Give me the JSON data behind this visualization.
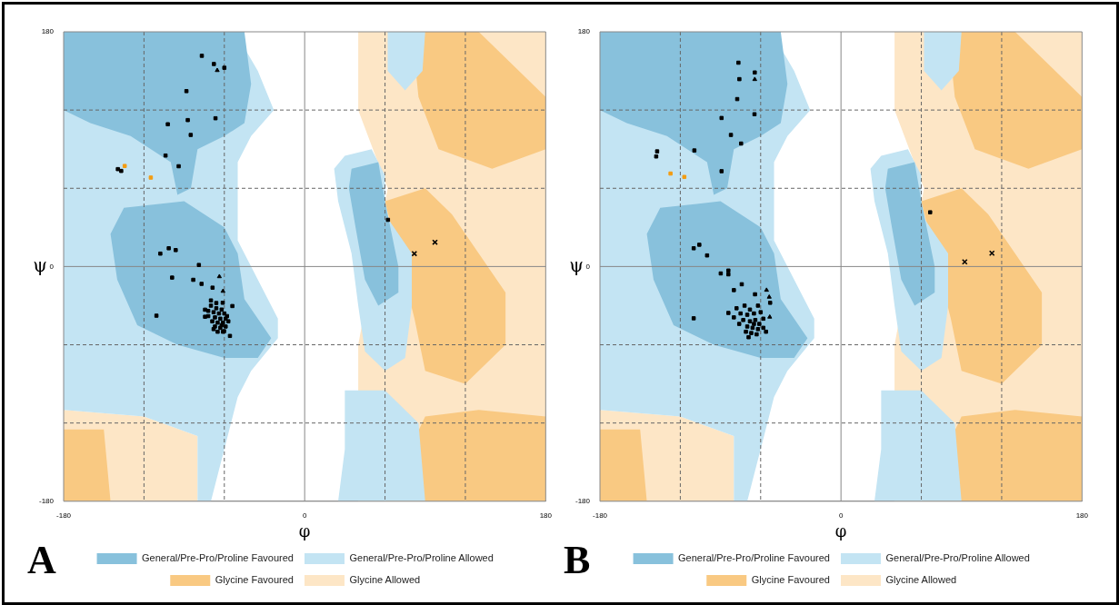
{
  "chart_data": [
    {
      "type": "scatter",
      "xlabel": "φ",
      "ylabel": "ψ",
      "annotations": [
        "A"
      ],
      "legend": "bottom",
      "grid": true,
      "xlim": [
        -180,
        180
      ],
      "xticks": [
        -180,
        {
          "value": -120,
          "label": null
        },
        {
          "value": -60,
          "label": null
        },
        0,
        {
          "value": 60,
          "label": null
        },
        {
          "value": 120,
          "label": null
        },
        180
      ],
      "ylim": [
        -180,
        180
      ],
      "yticks": [
        -180,
        {
          "value": -120,
          "label": null
        },
        {
          "value": -60,
          "label": null
        },
        0,
        {
          "value": 60,
          "label": null
        },
        {
          "value": 120,
          "label": null
        },
        180
      ],
      "series": [
        {
          "type": "area",
          "name": "Glycine Allowed",
          "color": "#fde6c6",
          "x": [
            40,
            180,
            180,
            40,
            40,
            62,
            40
          ],
          "values": [
            180,
            180,
            -180,
            -180,
            -60,
            60,
            120
          ]
        },
        {
          "type": "area",
          "color": "#fde6c6",
          "x": [
            -180,
            -120,
            -80,
            -80,
            -180
          ],
          "values": [
            -110,
            -115,
            -130,
            -180,
            -180
          ]
        },
        {
          "type": "area",
          "name": "Glycine Favoured",
          "color": "#f9c982",
          "x": [
            60,
            90,
            110,
            130,
            150,
            150,
            120,
            90,
            82
          ],
          "values": [
            50,
            60,
            40,
            10,
            -20,
            -60,
            -90,
            -80,
            -40
          ]
        },
        {
          "type": "area",
          "color": "#f9c982",
          "x": [
            80,
            130,
            180,
            180,
            140,
            100,
            85
          ],
          "values": [
            180,
            180,
            130,
            90,
            75,
            90,
            130
          ]
        },
        {
          "type": "area",
          "color": "#f9c982",
          "x": [
            90,
            130,
            180,
            180,
            60
          ],
          "values": [
            -115,
            -110,
            -115,
            -180,
            -180
          ]
        },
        {
          "type": "area",
          "color": "#f9c982",
          "x": [
            -180,
            -150,
            -145,
            -180
          ],
          "values": [
            -125,
            -125,
            -180,
            -180
          ]
        },
        {
          "type": "area",
          "name": "General/Pre-Pro/Proline Allowed",
          "color": "#c3e4f3",
          "x": [
            -180,
            -52,
            -35,
            -23,
            -40,
            -50,
            -50,
            -35,
            -20,
            -20,
            -40,
            -50,
            -60,
            -70,
            -80,
            -80,
            -120,
            -180
          ],
          "values": [
            180,
            180,
            150,
            120,
            100,
            80,
            20,
            -10,
            -40,
            -55,
            -80,
            -100,
            -140,
            -180,
            -180,
            -130,
            -115,
            -110
          ]
        },
        {
          "type": "area",
          "color": "#c3e4f3",
          "x": [
            30,
            50,
            60,
            60,
            80,
            80,
            75,
            60,
            45,
            40,
            35,
            25,
            22
          ],
          "values": [
            85,
            90,
            70,
            40,
            10,
            -30,
            -70,
            -80,
            -65,
            -30,
            10,
            50,
            75
          ]
        },
        {
          "type": "area",
          "color": "#c3e4f3",
          "x": [
            30,
            60,
            85,
            90,
            25,
            30
          ],
          "values": [
            -95,
            -95,
            -120,
            -180,
            -180,
            -140
          ]
        },
        {
          "type": "area",
          "color": "#c3e4f3",
          "x": [
            62,
            90,
            88,
            75,
            62
          ],
          "values": [
            180,
            180,
            150,
            135,
            150
          ]
        },
        {
          "type": "area",
          "name": "General/Pre-Pro/Proline Favoured",
          "color": "#88c1dc",
          "x": [
            -180,
            -45,
            -40,
            -45,
            -60,
            -80,
            -85,
            -95,
            -100,
            -130,
            -160,
            -180
          ],
          "values": [
            180,
            180,
            140,
            110,
            100,
            90,
            60,
            55,
            80,
            100,
            110,
            120
          ]
        },
        {
          "type": "area",
          "color": "#88c1dc",
          "x": [
            -135,
            -90,
            -60,
            -50,
            -45,
            -25,
            -35,
            -60,
            -95,
            -125,
            -140,
            -145
          ],
          "values": [
            45,
            50,
            30,
            10,
            -25,
            -55,
            -70,
            -70,
            -60,
            -45,
            -10,
            25
          ]
        },
        {
          "type": "area",
          "color": "#88c1dc",
          "x": [
            35,
            55,
            60,
            70,
            70,
            55,
            45,
            38,
            33
          ],
          "values": [
            75,
            80,
            50,
            0,
            -20,
            -30,
            -10,
            30,
            60
          ]
        },
        {
          "type": "scatter",
          "marker": "square",
          "color": "#000000",
          "x": [
            -76.8,
            -67.8,
            -60,
            -88.3,
            -66.6,
            -87.3,
            -102.2,
            -85.1,
            -103.9,
            -94.1,
            -139.5,
            -137,
            -107.8,
            -101.5,
            -96.3,
            -79,
            -99,
            -83.2,
            -77,
            -68.8,
            -110.7,
            -70,
            -61.2,
            -54,
            -74.4,
            -74.4,
            -55.8,
            -60.2,
            -70,
            -66,
            -62,
            -68,
            -64,
            -60,
            -72,
            -67,
            -63,
            -59,
            -69,
            -65,
            -61,
            -57,
            -67,
            -63,
            -59,
            -65,
            -61,
            -72,
            -58,
            -66,
            -62,
            -68,
            62.2
          ],
          "values": [
            161.6,
            155.3,
            152.4,
            134.5,
            113.7,
            112.3,
            109.1,
            100.9,
            85.1,
            76.9,
            74.7,
            73.3,
            9.9,
            14,
            12.6,
            1.2,
            -8.5,
            -10.2,
            -13.3,
            -16.2,
            -37.7,
            -26,
            -27.8,
            -30.3,
            -33.1,
            -38.5,
            -53.2,
            -49.6,
            -30,
            -32,
            -33,
            -35,
            -36,
            -36,
            -38,
            -39,
            -40,
            -40,
            -42,
            -43,
            -43,
            -42,
            -46,
            -47,
            -46,
            -50,
            -50,
            -34,
            -38,
            -28,
            -45,
            -48,
            35.8
          ]
        },
        {
          "type": "scatter",
          "marker": "triangle",
          "color": "#000000",
          "x": [
            -65.3,
            -63.7,
            -61
          ],
          "values": [
            150.4,
            -7.7,
            -18.9
          ]
        },
        {
          "type": "scatter",
          "marker": "cross",
          "color": "#000000",
          "x": [
            97.3,
            81.9
          ],
          "values": [
            18.6,
            9.9
          ]
        },
        {
          "type": "scatter",
          "marker": "square",
          "color": "#f39c12",
          "x": [
            -134.4,
            -114.9
          ],
          "values": [
            77.1,
            68.2
          ]
        }
      ]
    },
    {
      "type": "scatter",
      "xlabel": "φ",
      "ylabel": "ψ",
      "annotations": [
        "B"
      ],
      "legend": "bottom",
      "grid": true,
      "xlim": [
        -180,
        180
      ],
      "xticks": [
        -180,
        {
          "value": -120,
          "label": null
        },
        {
          "value": -60,
          "label": null
        },
        0,
        {
          "value": 60,
          "label": null
        },
        {
          "value": 120,
          "label": null
        },
        180
      ],
      "ylim": [
        -180,
        180
      ],
      "yticks": [
        -180,
        {
          "value": -120,
          "label": null
        },
        {
          "value": -60,
          "label": null
        },
        0,
        {
          "value": 60,
          "label": null
        },
        {
          "value": 120,
          "label": null
        },
        180
      ],
      "series": [
        {
          "type": "area",
          "name": "Glycine Allowed",
          "color": "#fde6c6",
          "x": [
            40,
            180,
            180,
            40,
            40,
            62,
            40
          ],
          "values": [
            180,
            180,
            -180,
            -180,
            -60,
            60,
            120
          ]
        },
        {
          "type": "area",
          "color": "#fde6c6",
          "x": [
            -180,
            -120,
            -80,
            -80,
            -180
          ],
          "values": [
            -110,
            -115,
            -130,
            -180,
            -180
          ]
        },
        {
          "type": "area",
          "name": "Glycine Favoured",
          "color": "#f9c982",
          "x": [
            60,
            90,
            110,
            130,
            150,
            150,
            120,
            90,
            82
          ],
          "values": [
            50,
            60,
            40,
            10,
            -20,
            -60,
            -90,
            -80,
            -40
          ]
        },
        {
          "type": "area",
          "color": "#f9c982",
          "x": [
            80,
            130,
            180,
            180,
            140,
            100,
            85
          ],
          "values": [
            180,
            180,
            130,
            90,
            75,
            90,
            130
          ]
        },
        {
          "type": "area",
          "color": "#f9c982",
          "x": [
            90,
            130,
            180,
            180,
            60
          ],
          "values": [
            -115,
            -110,
            -115,
            -180,
            -180
          ]
        },
        {
          "type": "area",
          "color": "#f9c982",
          "x": [
            -180,
            -150,
            -145,
            -180
          ],
          "values": [
            -125,
            -125,
            -180,
            -180
          ]
        },
        {
          "type": "area",
          "name": "General/Pre-Pro/Proline Allowed",
          "color": "#c3e4f3",
          "x": [
            -180,
            -52,
            -35,
            -23,
            -40,
            -50,
            -50,
            -35,
            -20,
            -20,
            -40,
            -50,
            -60,
            -70,
            -80,
            -80,
            -120,
            -180
          ],
          "values": [
            180,
            180,
            150,
            120,
            100,
            80,
            20,
            -10,
            -40,
            -55,
            -80,
            -100,
            -140,
            -180,
            -180,
            -130,
            -115,
            -110
          ]
        },
        {
          "type": "area",
          "color": "#c3e4f3",
          "x": [
            30,
            50,
            60,
            60,
            80,
            80,
            75,
            60,
            45,
            40,
            35,
            25,
            22
          ],
          "values": [
            85,
            90,
            70,
            40,
            10,
            -30,
            -70,
            -80,
            -65,
            -30,
            10,
            50,
            75
          ]
        },
        {
          "type": "area",
          "color": "#c3e4f3",
          "x": [
            30,
            60,
            85,
            90,
            25,
            30
          ],
          "values": [
            -95,
            -95,
            -120,
            -180,
            -180,
            -140
          ]
        },
        {
          "type": "area",
          "color": "#c3e4f3",
          "x": [
            62,
            90,
            88,
            75,
            62
          ],
          "values": [
            180,
            180,
            150,
            135,
            150
          ]
        },
        {
          "type": "area",
          "name": "General/Pre-Pro/Proline Favoured",
          "color": "#88c1dc",
          "x": [
            -180,
            -45,
            -40,
            -45,
            -60,
            -80,
            -85,
            -95,
            -100,
            -130,
            -160,
            -180
          ],
          "values": [
            180,
            180,
            140,
            110,
            100,
            90,
            60,
            55,
            80,
            100,
            110,
            120
          ]
        },
        {
          "type": "area",
          "color": "#88c1dc",
          "x": [
            -135,
            -90,
            -60,
            -50,
            -45,
            -25,
            -35,
            -60,
            -95,
            -125,
            -140,
            -145
          ],
          "values": [
            45,
            50,
            30,
            10,
            -25,
            -55,
            -70,
            -70,
            -60,
            -45,
            -10,
            25
          ]
        },
        {
          "type": "area",
          "color": "#88c1dc",
          "x": [
            35,
            55,
            60,
            70,
            70,
            55,
            45,
            38,
            33
          ],
          "values": [
            75,
            80,
            50,
            0,
            -20,
            -30,
            -10,
            30,
            60
          ]
        },
        {
          "type": "scatter",
          "marker": "square",
          "color": "#000000",
          "x": [
            -76.6,
            -64.4,
            -75.9,
            -77.5,
            -89.2,
            -64.6,
            -82.2,
            -74.6,
            -109.5,
            -137.3,
            -138,
            -89.2,
            -110,
            -105.8,
            -100,
            -89.8,
            -84.1,
            -84.1,
            -74.1,
            -80,
            -64.2,
            -52.9,
            -110,
            -84.1,
            -69,
            -78,
            -72,
            -68,
            -62,
            -75,
            -70,
            -65,
            -60,
            -58,
            -73,
            -68,
            -64,
            -61,
            -70,
            -66,
            -62,
            -58,
            -67,
            -63,
            -56,
            -80,
            -76,
            -71,
            -65,
            66.6
          ],
          "values": [
            156.3,
            148.8,
            143.7,
            128.4,
            113.9,
            116.8,
            100.9,
            94.3,
            89,
            88.3,
            84.4,
            73.1,
            14,
            16.7,
            8.5,
            -5.3,
            -3.1,
            -6,
            -13.6,
            -18.1,
            -21.3,
            -27.8,
            -39.7,
            -35.6,
            -54.2,
            -32,
            -30,
            -33,
            -30,
            -36,
            -37,
            -36,
            -35,
            -40,
            -41,
            -42,
            -41,
            -44,
            -46,
            -47,
            -48,
            -47,
            -51,
            -52,
            -50,
            -39,
            -44,
            -50,
            -44,
            41.6
          ]
        },
        {
          "type": "scatter",
          "marker": "triangle",
          "color": "#000000",
          "x": [
            -64.4,
            -55.6,
            -53.6,
            -53.2
          ],
          "values": [
            143.5,
            -18.1,
            -23.4,
            -38.7
          ]
        },
        {
          "type": "scatter",
          "marker": "cross",
          "color": "#000000",
          "x": [
            112.7,
            92.4
          ],
          "values": [
            10.2,
            3.6
          ]
        },
        {
          "type": "scatter",
          "marker": "square",
          "color": "#f39c12",
          "x": [
            -127.3,
            -117
          ],
          "values": [
            71.3,
            68.7
          ]
        }
      ]
    }
  ]
}
